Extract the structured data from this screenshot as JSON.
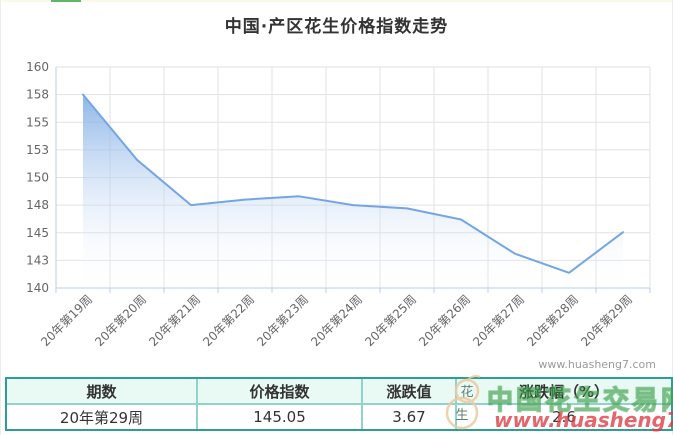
{
  "title": "中国·产区花生价格指数走势",
  "top_accent_color": "#5cb868",
  "chart_data": {
    "type": "area",
    "title": "中国·产区花生价格指数走势",
    "x": [
      "20年第19周",
      "20年第20周",
      "20年第21周",
      "20年第22周",
      "20年第23周",
      "20年第24周",
      "20年第25周",
      "20年第26周",
      "20年第27周",
      "20年第28周",
      "20年第29周"
    ],
    "values": [
      157.5,
      151.6,
      147.5,
      148.0,
      148.3,
      147.5,
      147.2,
      146.2,
      143.1,
      141.38,
      145.05
    ],
    "ylim": [
      140,
      160
    ],
    "y_tick_labels": [
      "140",
      "143",
      "145",
      "148",
      "150",
      "153",
      "155",
      "158",
      "160"
    ],
    "grid": true,
    "legend": "none",
    "line_color": "#74a6e3",
    "area_top_color": "#639be0",
    "axis_color": "#b7cdf0",
    "grid_color": "#e2e2e2",
    "label_color": "#666666",
    "watermark": "www.huasheng7.com"
  },
  "table": {
    "headers": [
      "期数",
      "价格指数",
      "涨跌值",
      "涨跌幅（%）"
    ],
    "row": [
      "20年第29周",
      "145.05",
      "3.67",
      "2.6"
    ],
    "header_bg": "#e9f9f4",
    "border_color": "#2e9d94"
  },
  "watermark_overlay": {
    "site_name": "中国花生交易网",
    "site_url": "www.huasheng7.com",
    "logo_chars": [
      "花",
      "生"
    ],
    "name_color": "#3ea04a",
    "url_color": "#de3a42"
  }
}
